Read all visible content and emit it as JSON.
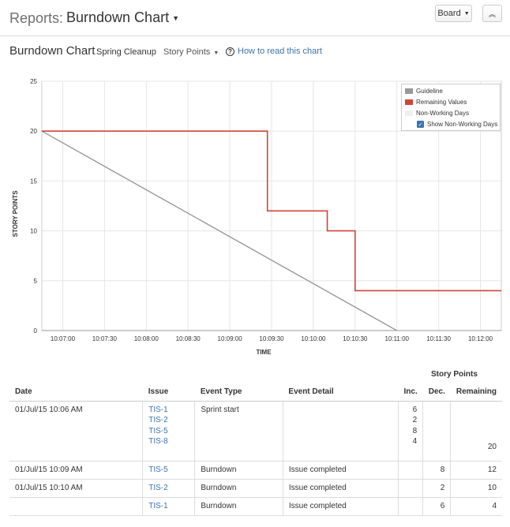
{
  "header": {
    "reports_label": "Reports:",
    "title": "Burndown Chart",
    "board_button": "Board",
    "collapse_icon": "double-chevron-up-icon"
  },
  "subheader": {
    "heading": "Burndown Chart",
    "sprint": "Spring Cleanup",
    "estimation_select": "Story Points",
    "help_link": "How to read this chart"
  },
  "legend": {
    "guideline": "Guideline",
    "remaining": "Remaining Values",
    "non_working": "Non-Working Days",
    "show_non_working": "Show Non-Working Days",
    "show_non_working_checked": true,
    "colors": {
      "guideline": "#999999",
      "remaining": "#d04437",
      "non_working": "#f0f0f0"
    }
  },
  "chart_data": {
    "type": "line",
    "xlabel": "TIME",
    "ylabel": "STORY POINTS",
    "ylim": [
      0,
      25
    ],
    "y_ticks": [
      0,
      5,
      10,
      15,
      20,
      25
    ],
    "x_ticks": [
      "10:07:00",
      "10:07:30",
      "10:08:00",
      "10:08:30",
      "10:09:00",
      "10:09:30",
      "10:10:00",
      "10:10:30",
      "10:11:00",
      "10:11:30",
      "10:12:00"
    ],
    "xlim": [
      "10:06:45",
      "10:12:15"
    ],
    "legend_position": "top-right",
    "grid": true,
    "series": [
      {
        "name": "Guideline",
        "color": "#999999",
        "step": false,
        "points": [
          [
            "10:06:45",
            20
          ],
          [
            "10:11:00",
            0
          ]
        ]
      },
      {
        "name": "Remaining Values",
        "color": "#d04437",
        "step": true,
        "points": [
          [
            "10:06:45",
            20
          ],
          [
            "10:09:27",
            12
          ],
          [
            "10:10:10",
            10
          ],
          [
            "10:10:30",
            4
          ],
          [
            "10:12:15",
            4
          ]
        ]
      }
    ]
  },
  "table": {
    "group_header": "Story Points",
    "columns": [
      "Date",
      "Issue",
      "Event Type",
      "Event Detail",
      "Inc.",
      "Dec.",
      "Remaining"
    ],
    "rows": [
      {
        "date": "01/Jul/15 10:06 AM",
        "issues": [
          "TIS-1",
          "TIS-2",
          "TIS-5",
          "TIS-8"
        ],
        "event_type": "Sprint start",
        "event_detail": "",
        "inc": [
          "6",
          "2",
          "8",
          "4"
        ],
        "dec": "",
        "remaining": "20"
      },
      {
        "date": "01/Jul/15 10:09 AM",
        "issues": [
          "TIS-5"
        ],
        "event_type": "Burndown",
        "event_detail": "Issue completed",
        "inc": [],
        "dec": "8",
        "remaining": "12"
      },
      {
        "date": "01/Jul/15 10:10 AM",
        "issues": [
          "TIS-2"
        ],
        "event_type": "Burndown",
        "event_detail": "Issue completed",
        "inc": [],
        "dec": "2",
        "remaining": "10"
      },
      {
        "date": "",
        "issues": [
          "TIS-1"
        ],
        "event_type": "Burndown",
        "event_detail": "Issue completed",
        "inc": [],
        "dec": "6",
        "remaining": "4"
      }
    ]
  }
}
